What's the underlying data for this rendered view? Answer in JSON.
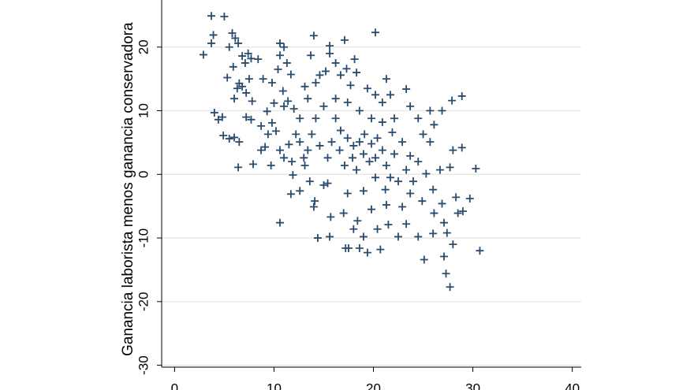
{
  "chart_data": {
    "type": "scatter",
    "y_label": "Ganancia laborista menos ganancia conservadora",
    "color": "#2a4b6e",
    "grid": true,
    "xlim": [
      -1.3,
      40.9
    ],
    "xticks": [
      0,
      10,
      20,
      30,
      40
    ],
    "ylim": [
      -30.3,
      27.4
    ],
    "yticks": [
      -30,
      -20,
      -10,
      0,
      10,
      20
    ],
    "x": [
      2.9,
      3.7,
      5.0,
      3.9,
      3.7,
      5.8,
      6.1,
      6.4,
      5.5,
      6.8,
      7.4,
      7.7,
      7.1,
      8.4,
      5.9,
      5.3,
      6.5,
      6.3,
      6.8,
      7.5,
      6.0,
      7.2,
      7.8,
      4.0,
      4.4,
      4.8,
      4.9,
      5.5,
      6.0,
      6.5,
      6.4,
      7.9,
      8.7,
      9.1,
      7.2,
      7.7,
      9.3,
      9.8,
      10.2,
      10.0,
      8.9,
      9.8,
      10.4,
      10.6,
      11.0,
      10.6,
      11.3,
      11.7,
      10.9,
      11.4,
      12.0,
      12.6,
      12.2,
      11.5,
      11.0,
      9.7,
      11.9,
      12.6,
      11.7,
      10.6,
      13.1,
      13.6,
      14.1,
      14.0,
      14.4,
      15.6,
      17.2,
      15.7,
      15.0,
      14.0,
      15.6,
      17.1,
      15.6,
      13.7,
      13.1,
      14.2,
      14.6,
      15.2,
      16.2,
      16.7,
      17.3,
      18.1,
      20.2,
      18.3,
      17.7,
      19.4,
      20.2,
      21.3,
      21.7,
      23.3,
      20.9,
      22.1,
      23.7,
      24.5,
      25.7,
      26.9,
      27.9,
      28.9,
      26.1,
      25.0,
      25.7,
      28.0,
      28.9,
      27.7,
      26.7,
      30.3,
      26.0,
      26.9,
      28.3,
      29.7,
      28.5,
      29.0,
      27.1,
      27.4,
      28.0,
      27.1,
      25.1,
      30.7,
      27.3,
      27.7,
      26.0,
      24.5,
      23.3,
      22.5,
      21.5,
      20.4,
      19.0,
      18.6,
      20.7,
      19.4,
      17.5,
      18.0,
      17.0,
      18.4,
      19.8,
      21.3,
      22.9,
      23.7,
      22.5,
      21.2,
      20.2,
      19.0,
      17.4,
      15.4,
      16.2,
      16.7,
      17.4,
      18.0,
      18.6,
      19.1,
      19.8,
      20.4,
      20.9,
      19.0,
      17.9,
      16.6,
      15.8,
      15.4,
      17.1,
      18.3,
      19.6,
      21.3,
      22.1,
      22.9,
      23.7,
      23.3,
      24.5,
      25.3,
      21.9,
      20.9,
      19.8,
      18.6,
      17.4,
      16.2,
      15.0,
      14.2,
      13.8,
      14.6,
      13.4,
      12.6,
      13.0,
      11.8,
      10.6,
      9.4,
      8.7,
      11.0,
      13.4,
      20.2,
      21.7,
      24.0,
      24.9,
      26.1
    ],
    "values": [
      18.8,
      24.9,
      24.8,
      21.9,
      20.6,
      22.2,
      21.4,
      20.6,
      20.0,
      18.6,
      19.0,
      18.2,
      17.5,
      18.1,
      16.9,
      15.2,
      14.3,
      13.5,
      13.8,
      15.0,
      11.9,
      12.8,
      11.5,
      9.7,
      8.6,
      9.0,
      6.1,
      5.6,
      5.8,
      5.1,
      1.1,
      1.6,
      3.8,
      4.3,
      9.0,
      8.6,
      9.9,
      8.1,
      6.8,
      11.2,
      15.0,
      14.4,
      16.5,
      20.6,
      20.0,
      18.7,
      17.5,
      15.7,
      13.1,
      11.5,
      10.3,
      8.8,
      6.3,
      4.7,
      2.6,
      1.4,
      -0.1,
      -2.6,
      -3.1,
      -7.6,
      1.4,
      -1.1,
      -4.2,
      -5.1,
      -10.0,
      -9.8,
      -11.6,
      -6.7,
      -1.7,
      21.8,
      20.2,
      21.1,
      19.0,
      18.7,
      13.8,
      14.4,
      15.6,
      16.2,
      17.5,
      15.6,
      16.6,
      18.1,
      22.3,
      16.0,
      14.0,
      13.5,
      12.5,
      15.0,
      12.5,
      13.4,
      11.3,
      8.8,
      10.7,
      8.8,
      10.0,
      10.0,
      11.6,
      12.3,
      7.8,
      6.3,
      5.1,
      3.8,
      4.2,
      1.1,
      0.7,
      0.9,
      -2.4,
      -4.6,
      -3.6,
      -3.8,
      -6.1,
      -5.8,
      -7.6,
      -9.2,
      -11.0,
      -12.9,
      -13.4,
      -12.0,
      -15.6,
      -17.7,
      -9.3,
      -9.8,
      -7.8,
      -9.8,
      -7.9,
      -8.6,
      -9.8,
      -11.6,
      -11.8,
      -12.3,
      -11.6,
      -8.6,
      -6.1,
      -7.3,
      -5.5,
      -4.8,
      -5.1,
      -3.0,
      -1.1,
      -2.4,
      -0.5,
      -2.6,
      -3.0,
      -1.4,
      8.8,
      6.9,
      5.7,
      4.5,
      5.1,
      6.3,
      4.8,
      5.7,
      3.8,
      3.2,
      2.6,
      3.8,
      5.1,
      2.6,
      1.4,
      0.7,
      2.0,
      1.4,
      3.2,
      5.1,
      2.9,
      0.7,
      2.0,
      0.1,
      6.6,
      8.2,
      8.8,
      10.0,
      11.3,
      11.9,
      10.7,
      8.8,
      6.3,
      4.5,
      3.8,
      5.1,
      2.6,
      2.0,
      3.8,
      6.3,
      7.6,
      10.7,
      11.9,
      2.6,
      -0.5,
      -1.1,
      -4.2,
      -6.1
    ]
  }
}
